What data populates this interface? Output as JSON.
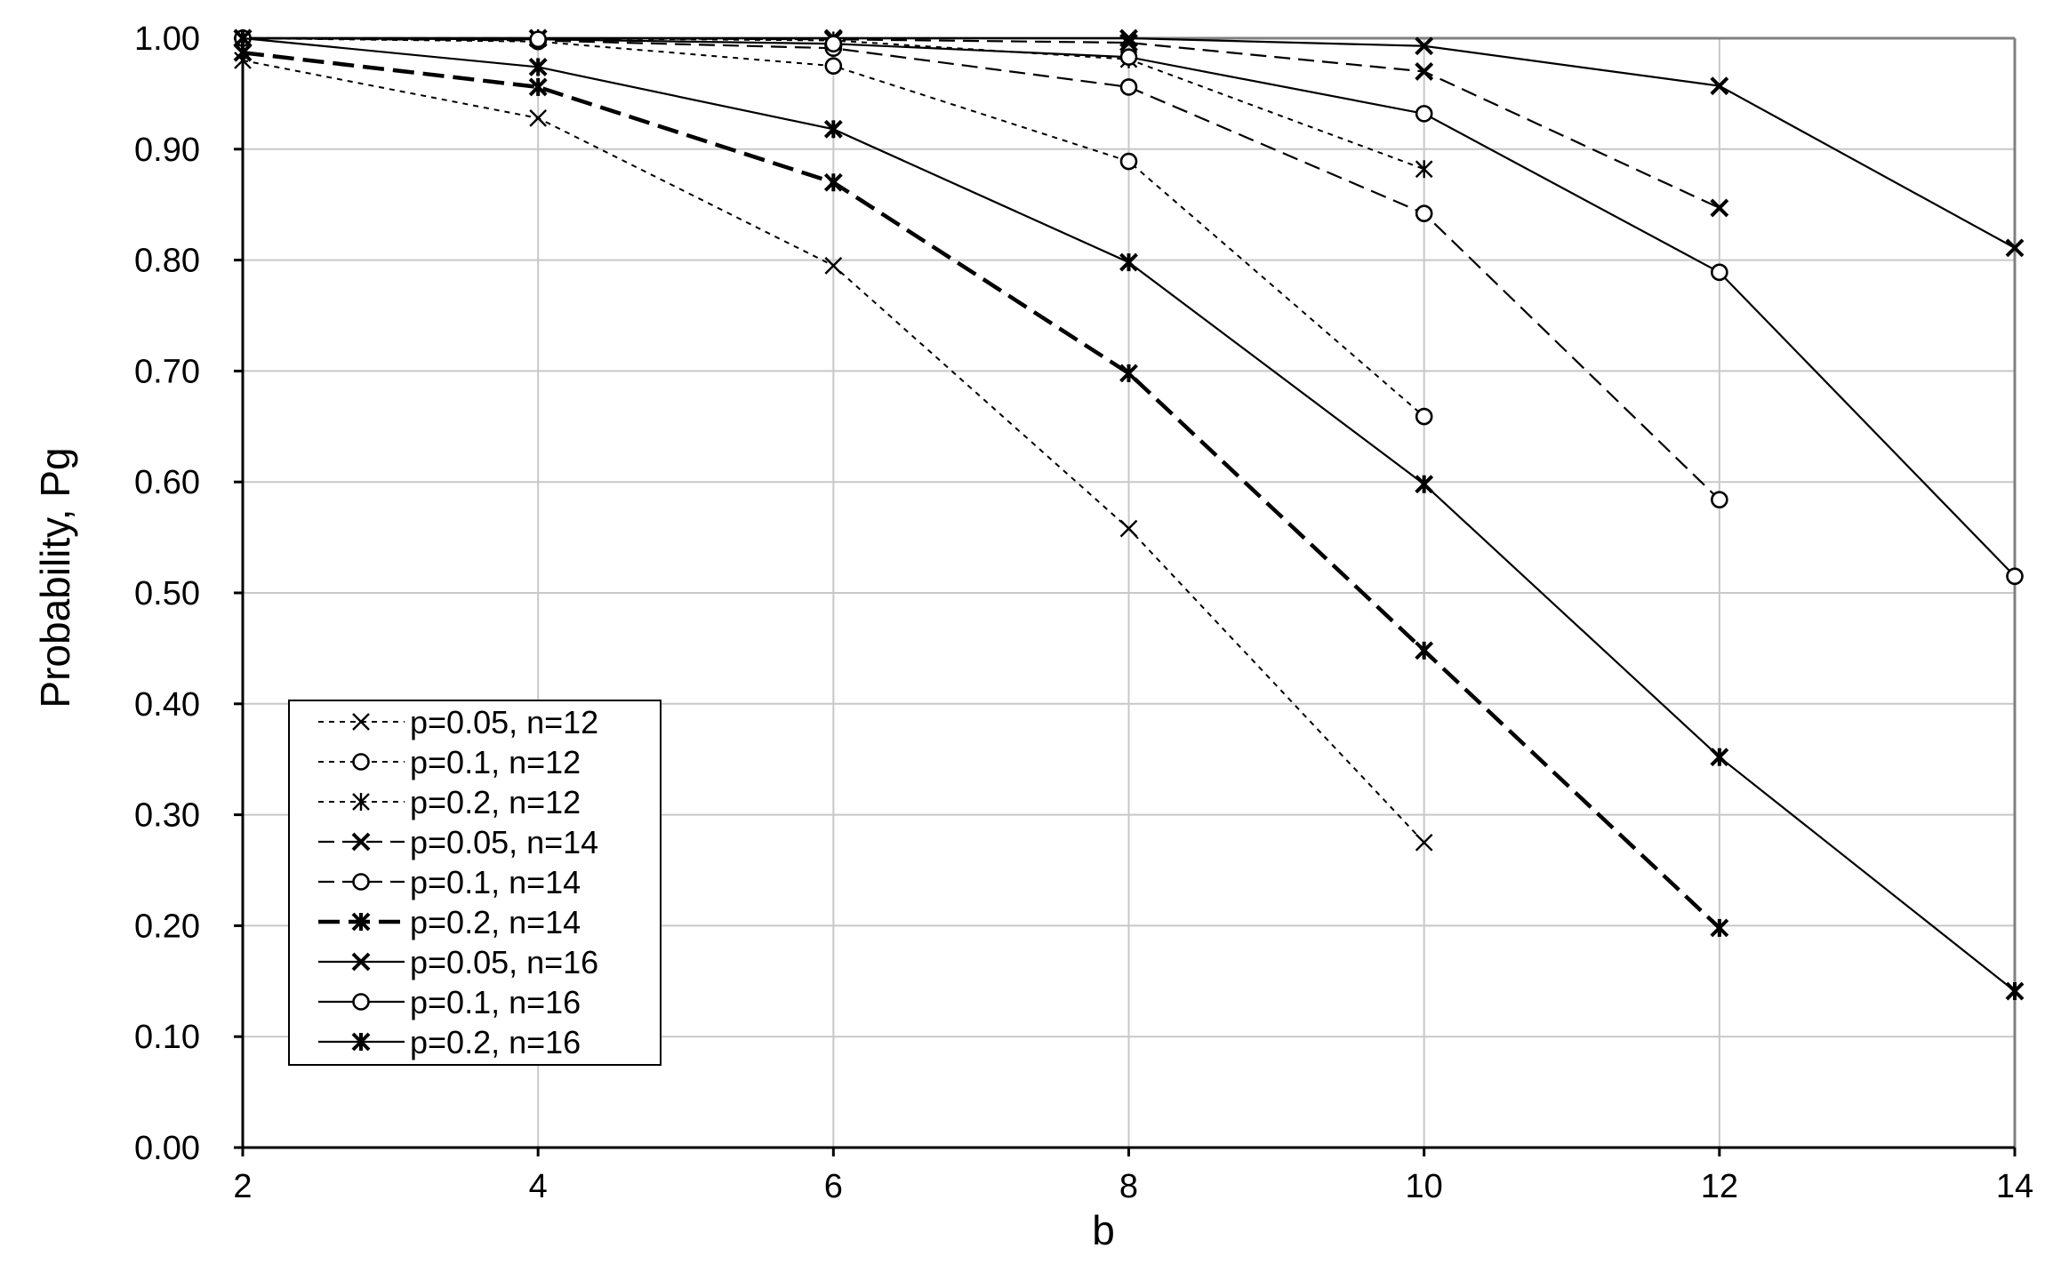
{
  "chart_data": {
    "type": "line",
    "title": "",
    "xlabel": "b",
    "ylabel": "Probability, Pg",
    "xlim": [
      2,
      14
    ],
    "ylim": [
      0,
      1
    ],
    "x_ticks": [
      "2",
      "4",
      "6",
      "8",
      "10",
      "12",
      "14"
    ],
    "y_ticks": [
      "0.00",
      "0.10",
      "0.20",
      "0.30",
      "0.40",
      "0.50",
      "0.60",
      "0.70",
      "0.80",
      "0.90",
      "1.00"
    ],
    "grid": true,
    "legend_position": "lower-left",
    "colors": {
      "line": "#000000",
      "grid": "#c8c8c8",
      "frame": "#808080",
      "background": "#ffffff"
    },
    "series": [
      {
        "name": "p=0.05, n=12",
        "marker": "x",
        "line_style": "dotted",
        "x": [
          2,
          4,
          6,
          8,
          10
        ],
        "values": [
          0.98,
          0.928,
          0.795,
          0.558,
          0.275
        ]
      },
      {
        "name": "p=0.1, n=12",
        "marker": "circle",
        "line_style": "dotted",
        "x": [
          2,
          4,
          6,
          8,
          10
        ],
        "values": [
          1.0,
          0.997,
          0.975,
          0.889,
          0.659
        ]
      },
      {
        "name": "p=0.2, n=12",
        "marker": "asterisk",
        "line_style": "dotted",
        "x": [
          2,
          4,
          6,
          8,
          10
        ],
        "values": [
          1.0,
          1.0,
          0.998,
          0.981,
          0.882
        ]
      },
      {
        "name": "p=0.05, n=14",
        "marker": "x",
        "line_style": "dashed",
        "x": [
          2,
          4,
          6,
          8,
          10,
          12
        ],
        "values": [
          1.0,
          1.0,
          0.999,
          0.996,
          0.97,
          0.847
        ]
      },
      {
        "name": "p=0.1, n=14",
        "marker": "circle",
        "line_style": "dashed",
        "x": [
          2,
          4,
          6,
          8,
          10,
          12
        ],
        "values": [
          1.0,
          0.998,
          0.991,
          0.956,
          0.842,
          0.584
        ]
      },
      {
        "name": "p=0.2, n=14",
        "marker": "asterisk",
        "line_style": "bold-dashed",
        "x": [
          2,
          4,
          6,
          8,
          10,
          12
        ],
        "values": [
          0.987,
          0.956,
          0.87,
          0.698,
          0.448,
          0.198
        ]
      },
      {
        "name": "p=0.05, n=16",
        "marker": "x",
        "line_style": "solid",
        "x": [
          2,
          4,
          6,
          8,
          10,
          12,
          14
        ],
        "values": [
          1.0,
          1.0,
          1.0,
          1.0,
          0.993,
          0.957,
          0.811
        ]
      },
      {
        "name": "p=0.1, n=16",
        "marker": "circle",
        "line_style": "solid",
        "x": [
          2,
          4,
          6,
          8,
          10,
          12,
          14
        ],
        "values": [
          1.0,
          0.999,
          0.995,
          0.983,
          0.932,
          0.789,
          0.515
        ]
      },
      {
        "name": "p=0.2, n=16",
        "marker": "asterisk",
        "line_style": "solid",
        "x": [
          2,
          4,
          6,
          8,
          10,
          12,
          14
        ],
        "values": [
          1.0,
          0.974,
          0.918,
          0.798,
          0.598,
          0.352,
          0.141
        ]
      }
    ]
  }
}
